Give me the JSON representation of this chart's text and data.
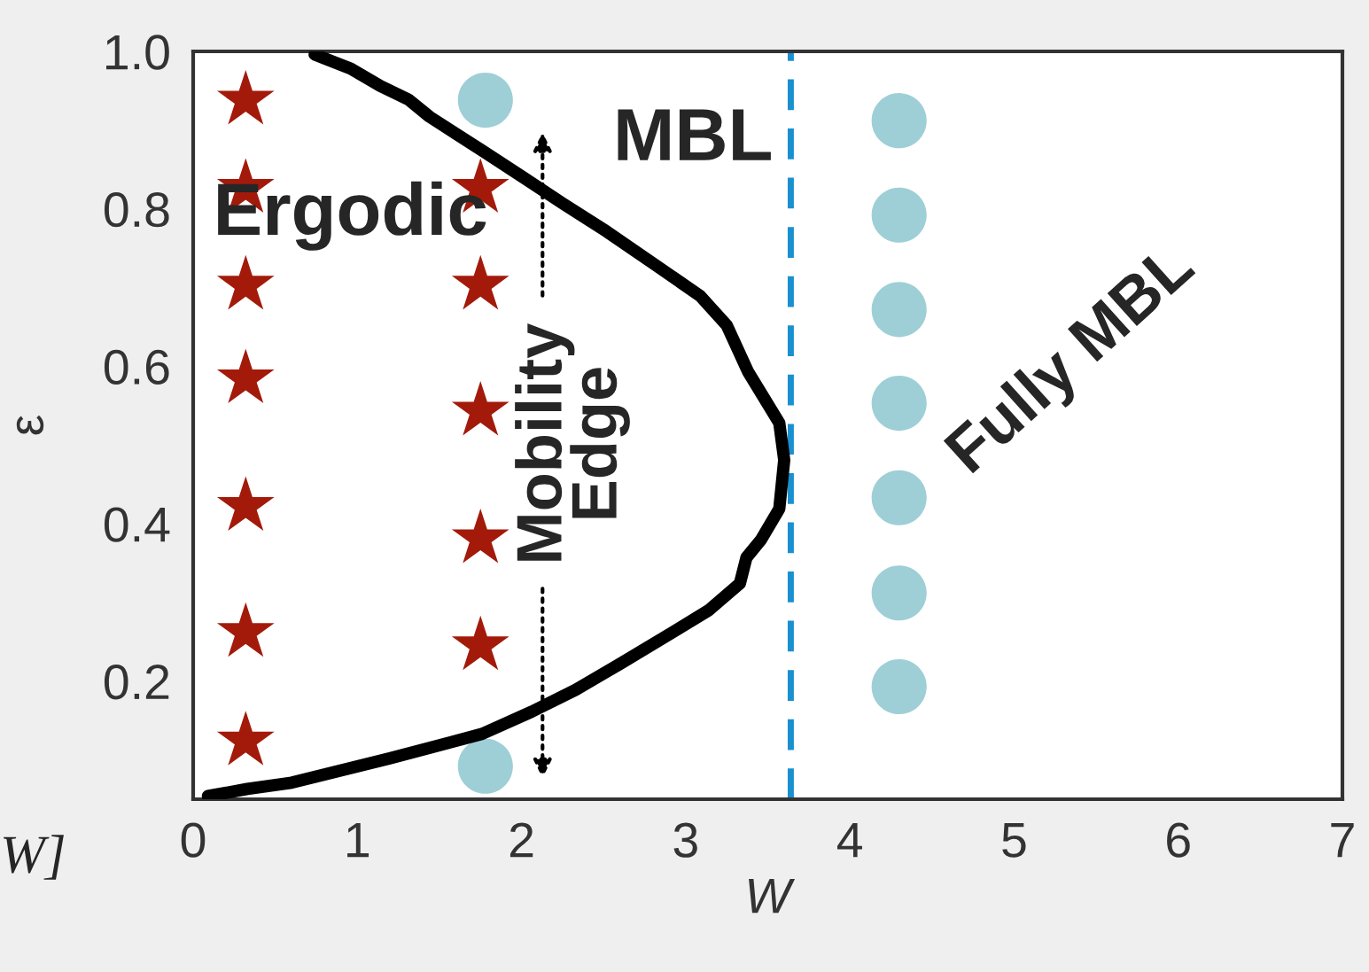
{
  "chart_data": {
    "type": "scatter",
    "xlabel": "W",
    "ylabel": "ε",
    "xlim": [
      0,
      7
    ],
    "ylim": [
      0.05,
      1.0
    ],
    "xticks": [
      0,
      1,
      2,
      3,
      4,
      5,
      6,
      7
    ],
    "yticks": [
      0.2,
      0.4,
      0.6,
      0.8,
      {
        "value": 1,
        "label": "1.0"
      }
    ],
    "grid": false,
    "legend": false,
    "series": [
      {
        "marker": "star",
        "color": "#a31a0a",
        "x": [
          0.32,
          0.32,
          0.32,
          0.32,
          0.32,
          0.32,
          0.32,
          1.75,
          1.75,
          1.75,
          1.75,
          1.75
        ],
        "values": [
          0.938,
          0.826,
          0.703,
          0.584,
          0.422,
          0.262,
          0.124,
          0.826,
          0.703,
          0.543,
          0.381,
          0.245
        ]
      },
      {
        "marker": "circle",
        "color": "#9ecfd6",
        "x": [
          1.78,
          1.78,
          4.3,
          4.3,
          4.3,
          4.3,
          4.3,
          4.3,
          4.3
        ],
        "values": [
          0.938,
          0.092,
          0.912,
          0.792,
          0.672,
          0.553,
          0.433,
          0.312,
          0.193
        ]
      },
      {
        "type": "line",
        "marker": "none",
        "line_style": "solid",
        "color": "#000000",
        "x": [
          0.74,
          0.96,
          1.14,
          1.31,
          1.44,
          1.76,
          2.01,
          2.25,
          2.52,
          2.82,
          3.09,
          3.25,
          3.38,
          3.57,
          3.6,
          3.57,
          3.46,
          3.37,
          3.33,
          3.14,
          2.92,
          2.6,
          2.33,
          2.06,
          1.76,
          1.2,
          0.6,
          0.33,
          0.09
        ],
        "values": [
          0.996,
          0.978,
          0.956,
          0.939,
          0.917,
          0.874,
          0.84,
          0.807,
          0.771,
          0.728,
          0.689,
          0.652,
          0.593,
          0.528,
          0.481,
          0.419,
          0.38,
          0.357,
          0.324,
          0.29,
          0.262,
          0.222,
          0.189,
          0.161,
          0.133,
          0.102,
          0.071,
          0.063,
          0.054
        ]
      }
    ],
    "ref_lines": [
      {
        "axis": "x",
        "value": 3.64,
        "color": "#1a90d0",
        "line_style": "dashed"
      }
    ],
    "annotations": [
      "Ergodic",
      "MBL",
      "Mobility\nEdge",
      "Fully MBL",
      "W]"
    ]
  }
}
